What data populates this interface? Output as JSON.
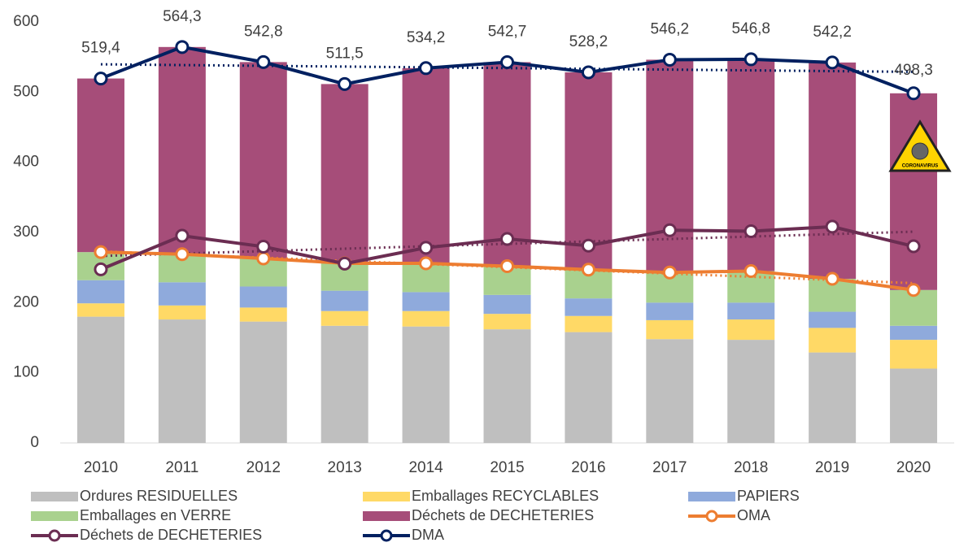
{
  "chart_data": {
    "type": "bar-line",
    "categories": [
      "2010",
      "2011",
      "2012",
      "2013",
      "2014",
      "2015",
      "2016",
      "2017",
      "2018",
      "2019",
      "2020"
    ],
    "series": [
      {
        "name": "Ordures RESIDUELLES",
        "type": "bar",
        "color": "#bfbfbf",
        "values": [
          180,
          176,
          173,
          167,
          166,
          162,
          158,
          148,
          147,
          129,
          106
        ]
      },
      {
        "name": "Emballages RECYCLABLES",
        "type": "bar",
        "color": "#ffd966",
        "values": [
          19,
          20,
          20,
          21,
          22,
          22,
          23,
          27,
          29,
          35,
          41
        ]
      },
      {
        "name": "PAPIERS",
        "type": "bar",
        "color": "#8faadc",
        "values": [
          33,
          33,
          30,
          29,
          27,
          27,
          25,
          25,
          24,
          23,
          20
        ]
      },
      {
        "name": "Emballages en VERRE",
        "type": "bar",
        "color": "#a9d18e",
        "values": [
          40,
          40,
          40,
          39,
          41,
          41,
          41,
          43,
          45,
          47,
          51
        ]
      },
      {
        "name": "Déchets de DECHETERIES",
        "type": "bar",
        "color": "#a64d79",
        "values": [
          247.4,
          295.3,
          279.8,
          255.5,
          278.2,
          290.7,
          281.2,
          303.2,
          301.8,
          308.2,
          280.3
        ]
      },
      {
        "name": "OMA",
        "type": "line",
        "color": "#ed7d31",
        "values": [
          272,
          269,
          263,
          256,
          256,
          252,
          247,
          243,
          245,
          234,
          218
        ]
      },
      {
        "name": "Déchets de DECHETERIES",
        "type": "line",
        "color": "#6b2d52",
        "values": [
          247.4,
          295.3,
          279.8,
          255.5,
          278.2,
          290.7,
          281.2,
          303.2,
          301.8,
          308.2,
          280.3
        ]
      },
      {
        "name": "DMA",
        "type": "line",
        "color": "#002060",
        "values": [
          519.4,
          564.3,
          542.8,
          511.5,
          534.2,
          542.7,
          528.2,
          546.2,
          546.8,
          542.2,
          498.3
        ],
        "value_labels": [
          "519,4",
          "564,3",
          "542,8",
          "511,5",
          "534,2",
          "542,7",
          "528,2",
          "546,2",
          "546,8",
          "542,2",
          "498,3"
        ]
      }
    ],
    "ylim": [
      0,
      600
    ],
    "yticks": [
      0,
      100,
      200,
      300,
      400,
      500,
      600
    ],
    "trendlines": true,
    "annotation": "CORONAVIRUS"
  }
}
